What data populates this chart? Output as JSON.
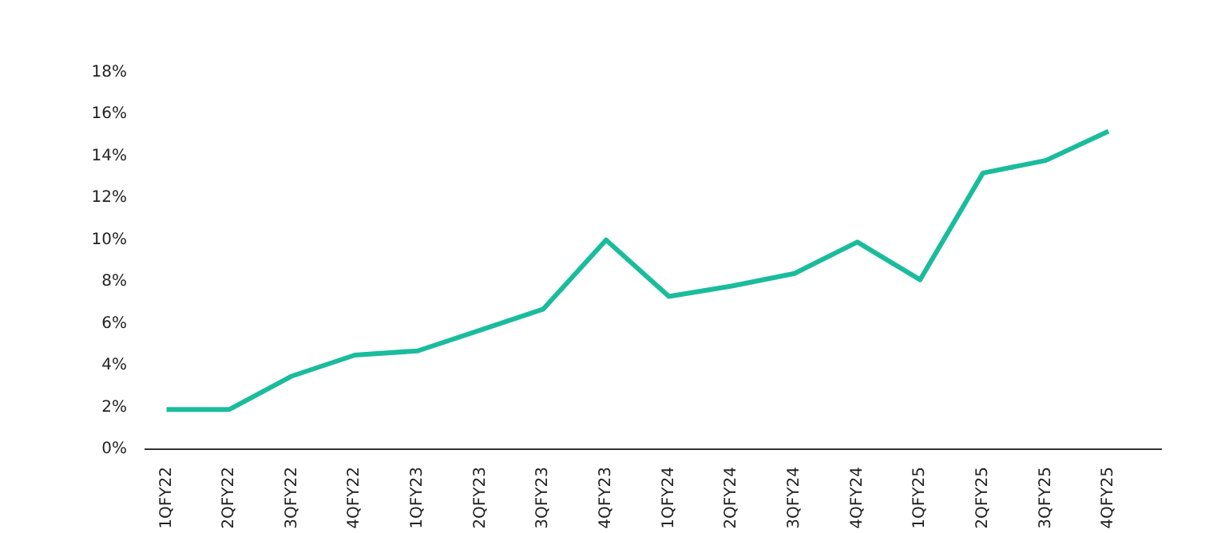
{
  "chart_data": {
    "type": "line",
    "categories": [
      "1QFY22",
      "2QFY22",
      "3QFY22",
      "4QFY22",
      "1QFY23",
      "2QFY23",
      "3QFY23",
      "4QFY23",
      "1QFY24",
      "2QFY24",
      "3QFY24",
      "4QFY24",
      "1QFY25",
      "2QFY25",
      "3QFY25",
      "4QFY25"
    ],
    "series": [
      {
        "color": "#1abc9c",
        "values": [
          1.9,
          1.9,
          3.5,
          4.5,
          4.7,
          5.7,
          6.7,
          10.0,
          7.3,
          7.8,
          8.4,
          9.9,
          8.1,
          13.2,
          13.8,
          15.2
        ]
      }
    ],
    "ylim": [
      0,
      18
    ],
    "yticks": [
      {
        "value": 0,
        "label": "0%"
      },
      {
        "value": 2,
        "label": "2%"
      },
      {
        "value": 4,
        "label": "4%"
      },
      {
        "value": 6,
        "label": "6%"
      },
      {
        "value": 8,
        "label": "8%"
      },
      {
        "value": 10,
        "label": "10%"
      },
      {
        "value": 12,
        "label": "12%"
      },
      {
        "value": 14,
        "label": "14%"
      },
      {
        "value": 16,
        "label": "16%"
      },
      {
        "value": 18,
        "label": "18%"
      }
    ],
    "grid": false
  }
}
